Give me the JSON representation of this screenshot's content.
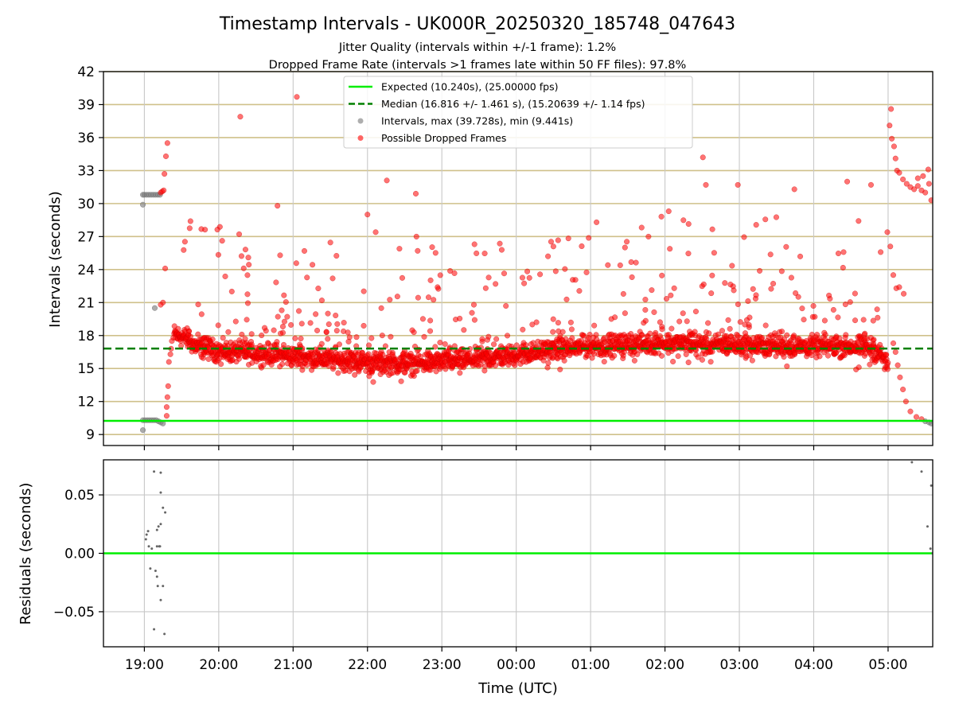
{
  "chart_data": [
    {
      "type": "scatter",
      "title": "Timestamp Intervals - UK000R_20250320_185748_047643",
      "subtitle_lines": [
        "Jitter Quality (intervals within +/-1 frame): 1.2%",
        "Dropped Frame Rate (intervals >1 frames late within 50 FF files): 97.8%"
      ],
      "xlabel": "",
      "ylabel": "Intervals (seconds)",
      "x_range_hours": [
        18.45,
        29.6
      ],
      "ylim": [
        8.0,
        42.0
      ],
      "yticks": [
        9,
        12,
        15,
        18,
        21,
        24,
        27,
        30,
        33,
        36,
        39,
        42
      ],
      "grid": true,
      "legend_position": "top-center",
      "legend": [
        {
          "label": "Expected (10.240s), (25.00000 fps)",
          "style": "solid-line",
          "color": "#00ee00"
        },
        {
          "label": "Median (16.816 +/- 1.461 s), (15.20639 +/- 1.14 fps)",
          "style": "dashed-line",
          "color": "#008000"
        },
        {
          "label": "Intervals, max (39.728s), min (9.441s)",
          "style": "marker",
          "color": "#8c8c8c"
        },
        {
          "label": "Possible Dropped Frames",
          "style": "marker",
          "color": "#ff0000"
        }
      ],
      "expected_interval": 10.24,
      "median_interval": 16.816,
      "series": [
        {
          "name": "Intervals, max (39.728s), min (9.441s)",
          "points": [
            [
              18.98,
              30.8
            ],
            [
              19.0,
              30.8
            ],
            [
              19.03,
              30.8
            ],
            [
              19.06,
              30.8
            ],
            [
              19.09,
              30.8
            ],
            [
              19.12,
              30.8
            ],
            [
              19.15,
              30.8
            ],
            [
              19.18,
              30.8
            ],
            [
              19.21,
              30.8
            ],
            [
              18.98,
              29.9
            ],
            [
              19.14,
              20.5
            ],
            [
              18.98,
              10.3
            ],
            [
              19.01,
              10.3
            ],
            [
              19.04,
              10.3
            ],
            [
              19.07,
              10.3
            ],
            [
              19.1,
              10.3
            ],
            [
              19.13,
              10.3
            ],
            [
              19.16,
              10.3
            ],
            [
              19.19,
              10.2
            ],
            [
              19.22,
              10.1
            ],
            [
              19.25,
              10.0
            ],
            [
              18.98,
              9.4
            ],
            [
              29.5,
              10.2
            ],
            [
              29.55,
              10.1
            ],
            [
              29.58,
              10.0
            ]
          ]
        },
        {
          "name": "Possible Dropped Frames",
          "points": [
            [
              19.22,
              31.0
            ],
            [
              19.24,
              31.1
            ],
            [
              19.26,
              31.2
            ],
            [
              19.27,
              32.7
            ],
            [
              19.29,
              34.3
            ],
            [
              19.31,
              35.5
            ],
            [
              19.28,
              24.1
            ],
            [
              19.25,
              21.0
            ],
            [
              19.22,
              20.8
            ],
            [
              19.3,
              10.7
            ],
            [
              19.3,
              11.5
            ],
            [
              19.31,
              12.4
            ],
            [
              19.32,
              13.4
            ],
            [
              19.33,
              15.6
            ],
            [
              19.35,
              16.3
            ],
            [
              19.36,
              16.8
            ],
            [
              19.37,
              17.5
            ],
            [
              19.39,
              17.8
            ],
            [
              19.62,
              28.4
            ],
            [
              20.29,
              37.9
            ],
            [
              20.79,
              29.8
            ],
            [
              21.05,
              39.7
            ],
            [
              22.26,
              32.1
            ],
            [
              22.11,
              27.4
            ],
            [
              22.65,
              30.9
            ],
            [
              22.0,
              29.0
            ],
            [
              24.5,
              26.1
            ],
            [
              25.08,
              28.3
            ],
            [
              26.05,
              29.3
            ],
            [
              26.51,
              34.2
            ],
            [
              26.55,
              31.7
            ],
            [
              26.98,
              31.7
            ],
            [
              27.74,
              31.3
            ],
            [
              28.77,
              31.7
            ],
            [
              28.45,
              32.0
            ],
            [
              28.99,
              27.4
            ],
            [
              29.03,
              26.1
            ],
            [
              29.07,
              23.5
            ],
            [
              29.11,
              22.3
            ],
            [
              29.15,
              22.4
            ],
            [
              29.21,
              21.8
            ],
            [
              29.04,
              38.6
            ],
            [
              29.02,
              37.1
            ],
            [
              29.05,
              35.9
            ],
            [
              29.08,
              35.2
            ],
            [
              29.1,
              34.1
            ],
            [
              29.12,
              33.0
            ],
            [
              29.15,
              32.8
            ],
            [
              29.2,
              32.2
            ],
            [
              29.25,
              31.8
            ],
            [
              29.3,
              31.5
            ],
            [
              29.35,
              31.3
            ],
            [
              29.4,
              31.6
            ],
            [
              29.45,
              31.2
            ],
            [
              29.5,
              31.0
            ],
            [
              29.55,
              31.8
            ],
            [
              29.58,
              30.3
            ],
            [
              29.54,
              33.1
            ],
            [
              29.4,
              32.3
            ],
            [
              29.47,
              32.5
            ],
            [
              29.07,
              17.3
            ],
            [
              29.1,
              16.5
            ],
            [
              29.13,
              15.3
            ],
            [
              29.16,
              14.2
            ],
            [
              29.2,
              13.1
            ],
            [
              29.24,
              12.0
            ],
            [
              29.3,
              11.1
            ],
            [
              29.38,
              10.6
            ],
            [
              29.45,
              10.4
            ]
          ]
        }
      ],
      "dense_band": {
        "description_free": true,
        "profile": [
          [
            19.4,
            18.1
          ],
          [
            19.55,
            17.8
          ],
          [
            19.7,
            17.0
          ],
          [
            20.0,
            16.6
          ],
          [
            20.5,
            16.4
          ],
          [
            21.0,
            16.1
          ],
          [
            21.5,
            15.8
          ],
          [
            22.0,
            15.6
          ],
          [
            22.5,
            15.4
          ],
          [
            23.0,
            15.6
          ],
          [
            23.5,
            15.9
          ],
          [
            24.0,
            16.2
          ],
          [
            24.5,
            16.7
          ],
          [
            25.0,
            17.0
          ],
          [
            25.5,
            17.2
          ],
          [
            26.0,
            17.3
          ],
          [
            26.5,
            17.2
          ],
          [
            27.0,
            17.1
          ],
          [
            27.5,
            17.0
          ],
          [
            28.0,
            17.0
          ],
          [
            28.5,
            17.0
          ],
          [
            28.75,
            16.9
          ],
          [
            28.9,
            16.3
          ],
          [
            29.0,
            15.2
          ]
        ]
      },
      "residuals": {
        "type": "scatter",
        "ylabel": "Residuals (seconds)",
        "xlabel": "Time (UTC)",
        "ylim": [
          -0.08,
          0.08
        ],
        "yticks": [
          -0.05,
          0.0,
          0.05
        ],
        "ytick_labels": [
          "−0.05",
          "0.00",
          "0.05"
        ],
        "xticks_hours": [
          19,
          20,
          21,
          22,
          23,
          24,
          25,
          26,
          27,
          28,
          29
        ],
        "xtick_labels": [
          "19:00",
          "20:00",
          "21:00",
          "22:00",
          "23:00",
          "00:00",
          "01:00",
          "02:00",
          "03:00",
          "04:00",
          "05:00"
        ],
        "points": [
          [
            19.13,
            0.07
          ],
          [
            19.22,
            0.069
          ],
          [
            19.22,
            0.052
          ],
          [
            19.25,
            0.039
          ],
          [
            19.28,
            0.035
          ],
          [
            19.22,
            0.025
          ],
          [
            19.19,
            0.023
          ],
          [
            19.17,
            0.02
          ],
          [
            19.05,
            0.019
          ],
          [
            19.03,
            0.016
          ],
          [
            19.02,
            0.012
          ],
          [
            19.06,
            0.006
          ],
          [
            19.17,
            0.006
          ],
          [
            19.2,
            0.006
          ],
          [
            19.21,
            0.006
          ],
          [
            19.1,
            0.004
          ],
          [
            19.08,
            -0.013
          ],
          [
            19.15,
            -0.015
          ],
          [
            19.17,
            -0.02
          ],
          [
            19.25,
            -0.028
          ],
          [
            19.18,
            -0.028
          ],
          [
            19.22,
            -0.04
          ],
          [
            19.13,
            -0.065
          ],
          [
            19.27,
            -0.069
          ],
          [
            29.32,
            0.078
          ],
          [
            29.45,
            0.07
          ],
          [
            29.58,
            0.058
          ],
          [
            29.53,
            0.023
          ],
          [
            29.57,
            0.004
          ],
          [
            29.6,
            0.0
          ]
        ]
      }
    }
  ]
}
